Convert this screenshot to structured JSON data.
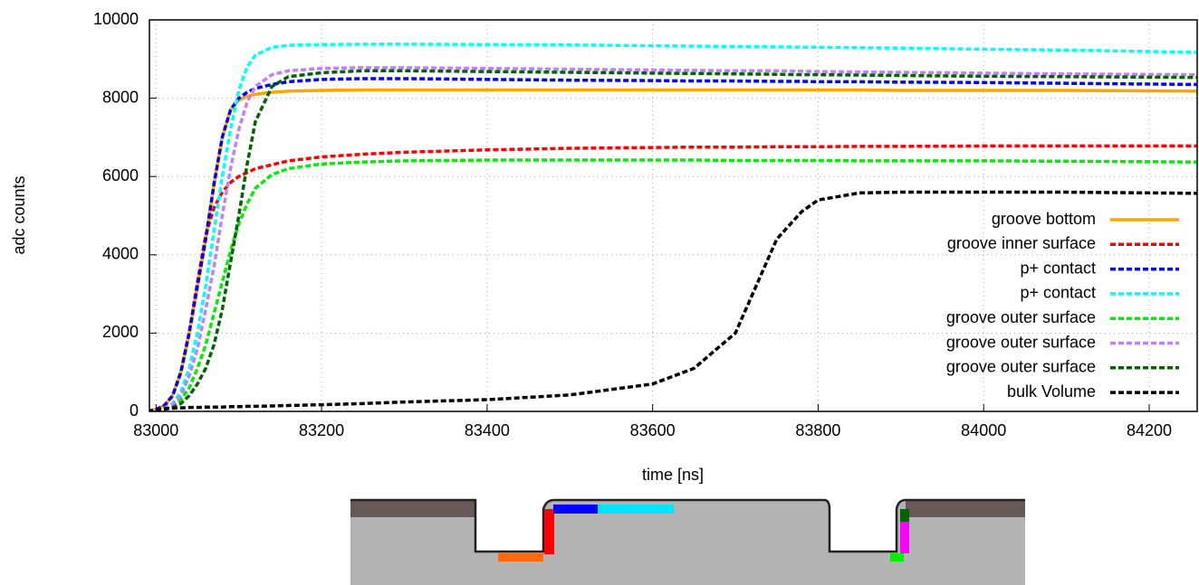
{
  "chart_data": {
    "type": "line",
    "xlabel": "time [ns]",
    "ylabel": "adc counts",
    "x": [
      82990,
      83000,
      83010,
      83020,
      83030,
      83040,
      83050,
      83060,
      83070,
      83080,
      83090,
      83100,
      83110,
      83120,
      83140,
      83160,
      83200,
      83250,
      83300,
      83400,
      83500,
      83600,
      83650,
      83700,
      83750,
      83780,
      83800,
      83850,
      83900,
      84000,
      84100,
      84258
    ],
    "series": [
      {
        "name": "groove bottom",
        "color": "#ffa500",
        "dashed": false,
        "values": [
          0,
          50,
          150,
          400,
          1000,
          2000,
          3200,
          4400,
          5800,
          7000,
          7700,
          7950,
          8050,
          8100,
          8150,
          8180,
          8200,
          8210,
          8210,
          8210,
          8210,
          8210,
          8210,
          8210,
          8210,
          8210,
          8210,
          8210,
          8200,
          8200,
          8200,
          8180
        ]
      },
      {
        "name": "groove inner surface",
        "color": "#ff0000",
        "dashed": true,
        "values": [
          0,
          50,
          150,
          400,
          1000,
          2000,
          3300,
          4500,
          5200,
          5600,
          5850,
          6000,
          6100,
          6200,
          6300,
          6400,
          6500,
          6570,
          6620,
          6680,
          6720,
          6740,
          6750,
          6750,
          6760,
          6760,
          6760,
          6770,
          6770,
          6780,
          6780,
          6780
        ]
      },
      {
        "name": "p+ contact",
        "color": "#0000ff",
        "dashed": true,
        "values": [
          0,
          50,
          150,
          400,
          1000,
          2000,
          3200,
          4400,
          5800,
          7000,
          7700,
          8000,
          8150,
          8250,
          8350,
          8420,
          8480,
          8500,
          8500,
          8480,
          8460,
          8450,
          8440,
          8440,
          8430,
          8430,
          8420,
          8420,
          8410,
          8400,
          8380,
          8350
        ]
      },
      {
        "name": "p+ contact",
        "color": "#00ffff",
        "dashed": true,
        "values": [
          0,
          30,
          80,
          200,
          500,
          1100,
          2000,
          3200,
          4600,
          6000,
          7200,
          8200,
          8800,
          9100,
          9300,
          9350,
          9370,
          9380,
          9380,
          9370,
          9360,
          9340,
          9330,
          9320,
          9310,
          9300,
          9300,
          9290,
          9280,
          9250,
          9230,
          9170
        ]
      },
      {
        "name": "groove outer surface",
        "color": "#00ee00",
        "dashed": true,
        "values": [
          0,
          20,
          60,
          130,
          300,
          600,
          1100,
          1700,
          2500,
          3300,
          4100,
          4800,
          5300,
          5700,
          6050,
          6200,
          6320,
          6370,
          6400,
          6420,
          6420,
          6420,
          6420,
          6410,
          6410,
          6410,
          6410,
          6400,
          6400,
          6400,
          6390,
          6370
        ]
      },
      {
        "name": "groove outer surface",
        "color": "#c080ff",
        "dashed": true,
        "values": [
          0,
          30,
          80,
          180,
          400,
          900,
          1600,
          2600,
          3700,
          5000,
          6200,
          7200,
          7900,
          8300,
          8600,
          8700,
          8760,
          8780,
          8780,
          8760,
          8740,
          8720,
          8710,
          8700,
          8700,
          8690,
          8680,
          8670,
          8660,
          8640,
          8620,
          8600
        ]
      },
      {
        "name": "groove outer surface",
        "color": "#006400",
        "dashed": true,
        "values": [
          0,
          20,
          50,
          100,
          200,
          400,
          700,
          1100,
          1700,
          2600,
          3800,
          5000,
          6300,
          7400,
          8300,
          8550,
          8650,
          8700,
          8700,
          8680,
          8660,
          8640,
          8630,
          8620,
          8610,
          8600,
          8600,
          8590,
          8580,
          8560,
          8550,
          8530
        ]
      },
      {
        "name": "bulk Volume",
        "color": "#000000",
        "dashed": true,
        "values": [
          0,
          50,
          70,
          80,
          90,
          100,
          100,
          110,
          110,
          110,
          120,
          120,
          130,
          130,
          140,
          150,
          170,
          200,
          240,
          300,
          420,
          700,
          1100,
          2000,
          4400,
          5100,
          5400,
          5580,
          5600,
          5600,
          5600,
          5570
        ]
      }
    ],
    "xlim": [
      82992,
      84258
    ],
    "xticks": [
      83000,
      83200,
      83400,
      83600,
      83800,
      84000,
      84200
    ],
    "ylim": [
      0,
      10000
    ],
    "yticks": [
      0,
      2000,
      4000,
      6000,
      8000,
      10000
    ],
    "grid": true,
    "legend": "right"
  }
}
